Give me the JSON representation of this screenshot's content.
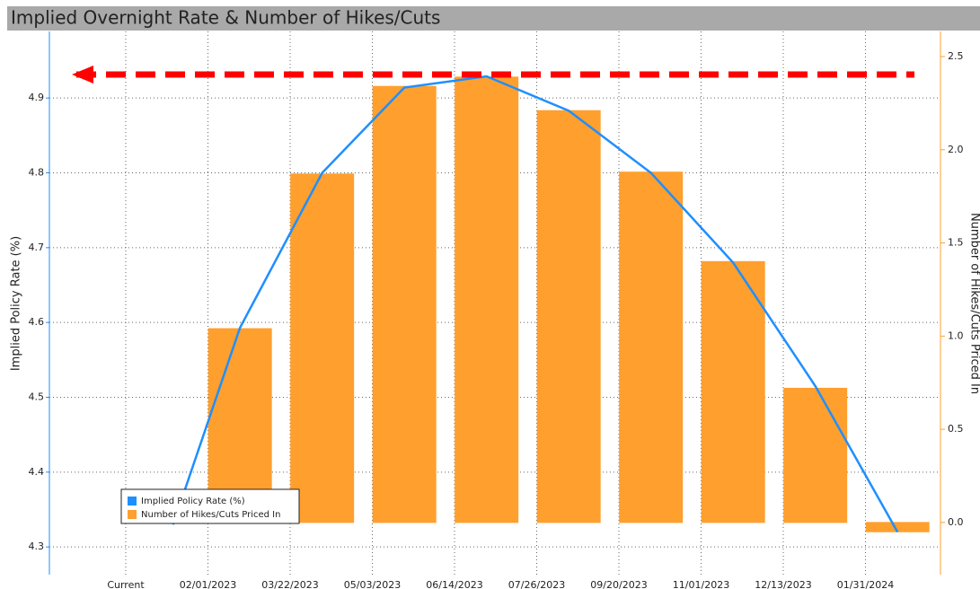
{
  "chart_data": {
    "type": "bar_line",
    "title": "Implied Overnight Rate & Number of Hikes/Cuts",
    "y_label": "Implied Policy Rate (%)",
    "y2_label": "Number of Hikes/Cuts Priced In",
    "categories": [
      "Current",
      "02/01/2023",
      "03/22/2023",
      "05/03/2023",
      "06/14/2023",
      "07/26/2023",
      "09/20/2023",
      "11/01/2023",
      "12/13/2023",
      "01/31/2024"
    ],
    "series": [
      {
        "name": "Implied Policy Rate (%)",
        "type": "line",
        "color": "#1f8fff",
        "values": [
          4.33,
          4.593,
          4.8,
          4.914,
          4.929,
          4.883,
          4.8,
          4.68,
          4.515,
          4.32
        ]
      },
      {
        "name": "Number of Hikes/Cuts Priced In",
        "type": "bar",
        "axis": "y2",
        "color": "#ff9f2e",
        "values": [
          0,
          1.04,
          1.87,
          2.34,
          2.39,
          2.21,
          1.88,
          1.4,
          0.72,
          -0.05
        ]
      }
    ],
    "ylim": [
      4.263,
      4.989
    ],
    "yticks": [
      4.3,
      4.4,
      4.5,
      4.6,
      4.7,
      4.8,
      4.9
    ],
    "y2lim": [
      -0.28,
      2.635
    ],
    "y2ticks": [
      {
        "value": 0,
        "label": "0.0"
      },
      0.5,
      {
        "value": 1,
        "label": "1.0"
      },
      1.5,
      {
        "value": 2,
        "label": "2.0"
      },
      2.5
    ],
    "grid": true,
    "legend": "lower left"
  }
}
